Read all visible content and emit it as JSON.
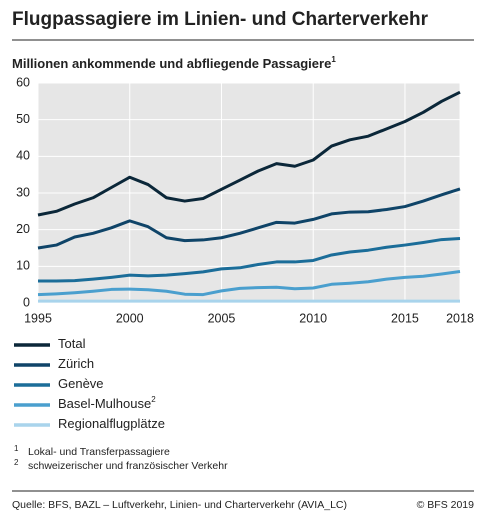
{
  "chart_data": {
    "type": "line",
    "title": "Flugpassagiere im Linien- und Charterverkehr",
    "subtitle": "Millionen ankommende und abfliegende Passagiere",
    "subtitle_note": "1",
    "x": [
      1995,
      1996,
      1997,
      1998,
      1999,
      2000,
      2001,
      2002,
      2003,
      2004,
      2005,
      2006,
      2007,
      2008,
      2009,
      2010,
      2011,
      2012,
      2013,
      2014,
      2015,
      2016,
      2017,
      2018
    ],
    "xlim": [
      1995,
      2018
    ],
    "xticks": [
      1995,
      2000,
      2005,
      2010,
      2015,
      2018
    ],
    "ylim": [
      0,
      60
    ],
    "yticks": [
      0,
      10,
      20,
      30,
      40,
      50,
      60
    ],
    "grid": true,
    "series": [
      {
        "name": "Total",
        "color": "#0b2739",
        "values": [
          24,
          25,
          27,
          28.7,
          31.5,
          34.3,
          32.3,
          28.7,
          27.8,
          28.5,
          31,
          33.5,
          36,
          38,
          37.3,
          39,
          42.8,
          44.5,
          45.5,
          47.5,
          49.5,
          52,
          55,
          57.5
        ]
      },
      {
        "name": "Zürich",
        "color": "#0f4468",
        "values": [
          15,
          15.8,
          18,
          19,
          20.5,
          22.4,
          20.8,
          17.8,
          17,
          17.2,
          17.8,
          19,
          20.5,
          22,
          21.8,
          22.8,
          24.3,
          24.8,
          24.9,
          25.5,
          26.3,
          27.8,
          29.5,
          31.1
        ]
      },
      {
        "name": "Genève",
        "color": "#1b6d99",
        "values": [
          6,
          6,
          6.1,
          6.5,
          7,
          7.6,
          7.4,
          7.6,
          8,
          8.5,
          9.3,
          9.6,
          10.5,
          11.2,
          11.2,
          11.6,
          13.1,
          13.9,
          14.4,
          15.2,
          15.8,
          16.5,
          17.3,
          17.6
        ]
      },
      {
        "name": "Basel-Mulhouse",
        "name_note": "2",
        "color": "#4a9fce",
        "values": [
          2.3,
          2.5,
          2.8,
          3.2,
          3.7,
          3.8,
          3.6,
          3.2,
          2.4,
          2.3,
          3.3,
          4,
          4.2,
          4.3,
          3.9,
          4.1,
          5.1,
          5.4,
          5.8,
          6.5,
          7,
          7.3,
          7.9,
          8.6
        ]
      },
      {
        "name": "Regionalflugplätze",
        "color": "#a9d4ec",
        "values": [
          0.5,
          0.5,
          0.5,
          0.5,
          0.5,
          0.5,
          0.5,
          0.5,
          0.5,
          0.5,
          0.5,
          0.5,
          0.5,
          0.5,
          0.5,
          0.5,
          0.5,
          0.5,
          0.5,
          0.5,
          0.5,
          0.5,
          0.5,
          0.5
        ]
      }
    ],
    "footnotes": [
      {
        "mark": "1",
        "text": "Lokal- und Transferpassagiere"
      },
      {
        "mark": "2",
        "text": "schweizerischer und französischer Verkehr"
      }
    ],
    "source": "Quelle: BFS, BAZL – Luftverkehr, Linien- und Charterverkehr (AVIA_LC)",
    "copyright": "© BFS 2019"
  }
}
